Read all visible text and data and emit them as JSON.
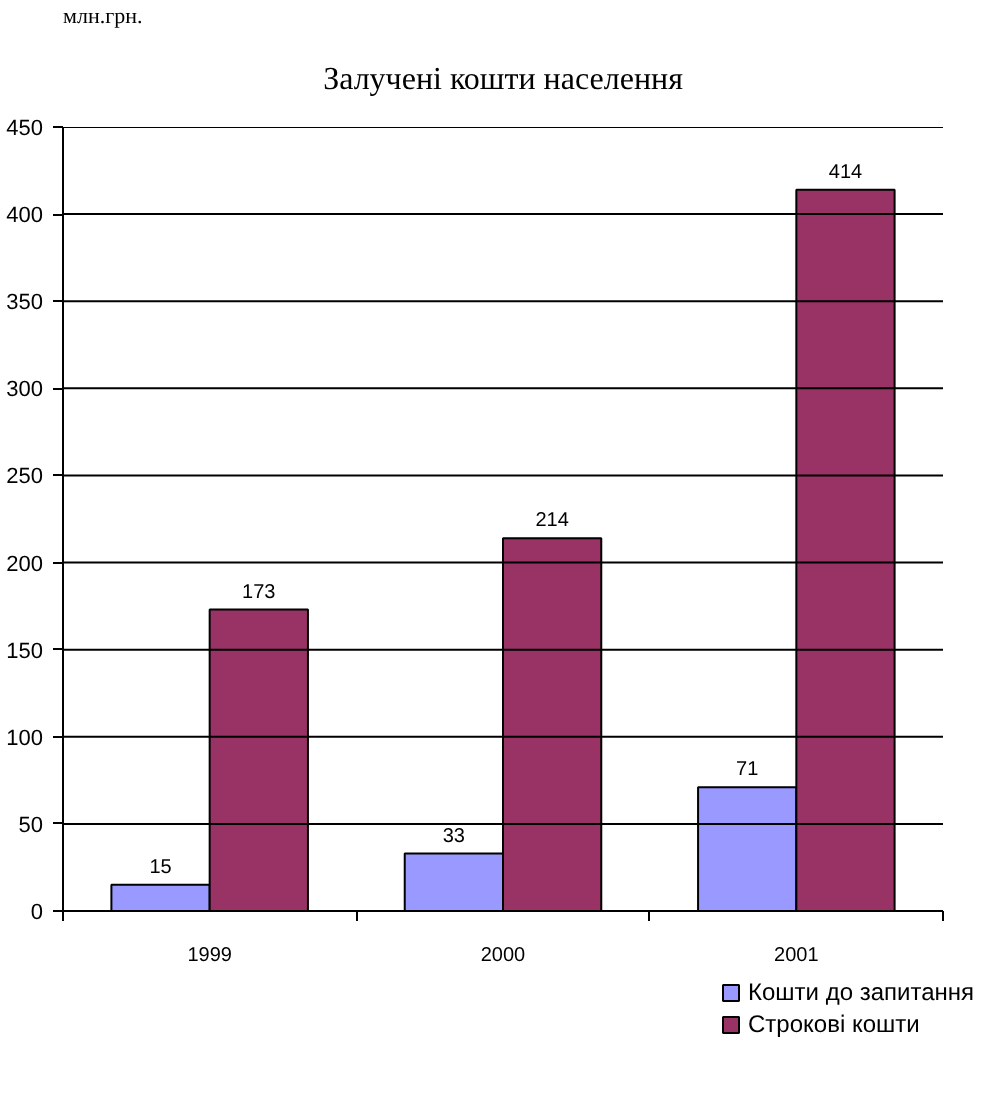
{
  "chart_data": {
    "type": "bar",
    "title": "Залучені кошти населення",
    "ylabel": "млн.грн.",
    "categories": [
      "1999",
      "2000",
      "2001"
    ],
    "series": [
      {
        "name": "Кошти до запитання",
        "color": "#9999ff",
        "values": [
          15,
          33,
          71
        ]
      },
      {
        "name": "Строкові кошти",
        "color": "#993366",
        "values": [
          173,
          214,
          414
        ]
      }
    ],
    "ylim": [
      0,
      450
    ],
    "yticks": [
      0,
      50,
      100,
      150,
      200,
      250,
      300,
      350,
      400,
      450
    ],
    "grid": "y",
    "legend": "bottom right",
    "data_labels": true
  }
}
